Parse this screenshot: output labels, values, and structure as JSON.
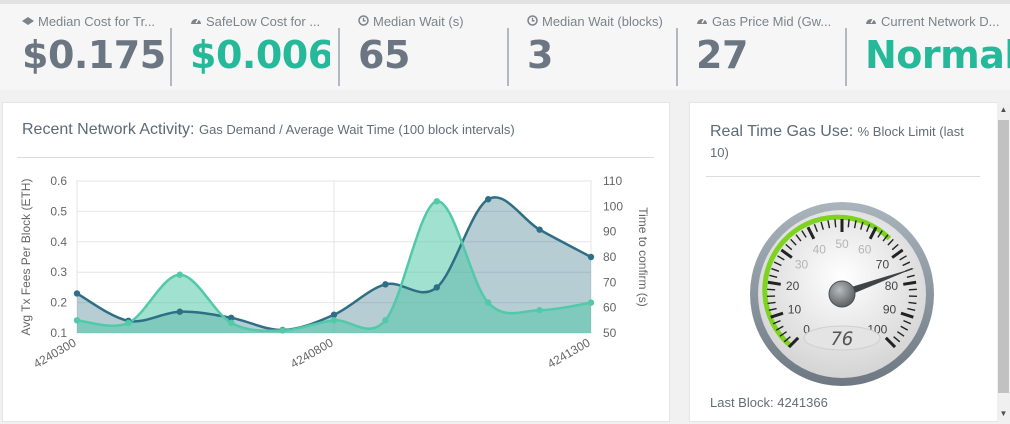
{
  "stats": [
    {
      "label": "Median Cost for Tr...",
      "value": "$0.1752",
      "icon": "ether-icon",
      "accent": "#6b7682"
    },
    {
      "label": "SafeLow Cost for ...",
      "value": "$0.006",
      "icon": "dashboard-icon",
      "accent": "#25b99a"
    },
    {
      "label": "Median Wait (s)",
      "value": "65",
      "icon": "clock-icon",
      "accent": "#6b7682"
    },
    {
      "label": "Median Wait (blocks)",
      "value": "3",
      "icon": "clock-icon",
      "accent": "#6b7682"
    },
    {
      "label": "Gas Price Mid (Gw...",
      "value": "27",
      "icon": "dashboard-icon",
      "accent": "#6b7682"
    },
    {
      "label": "Current Network D...",
      "value": "Normal",
      "icon": "dashboard-icon",
      "accent": "#25b99a"
    }
  ],
  "activity": {
    "title": "Recent Network Activity:",
    "subtitle": "Gas Demand / Average Wait Time (100 block intervals)"
  },
  "gauge_panel": {
    "title": "Real Time Gas Use:",
    "subtitle": "% Block Limit (last 10)",
    "last_block_label": "Last Block:",
    "last_block_value": "4241366"
  },
  "chart_data": {
    "type": "line",
    "x_ticks": [
      "4240300",
      "4240800",
      "4241300"
    ],
    "ylabel": "Avg Tx Fees Per Block (ETH)",
    "ylabel_right": "Time to confirm (s)",
    "ylim": [
      0.1,
      0.6
    ],
    "ylim_right": [
      50,
      110
    ],
    "y_ticks": [
      "0.1",
      "0.2",
      "0.3",
      "0.4",
      "0.5",
      "0.6"
    ],
    "y_ticks_right": [
      "50",
      "60",
      "70",
      "80",
      "90",
      "100",
      "110"
    ],
    "grid": true,
    "x": [
      4240300,
      4240400,
      4240500,
      4240600,
      4240700,
      4240800,
      4240900,
      4241000,
      4241100,
      4241200,
      4241300
    ],
    "series": [
      {
        "axis": "left",
        "color": "#2f6f85",
        "values": [
          0.23,
          0.14,
          0.17,
          0.15,
          0.11,
          0.16,
          0.26,
          0.25,
          0.54,
          0.44,
          0.35
        ]
      },
      {
        "axis": "right",
        "color": "#52c9a9",
        "values": [
          55,
          54,
          73,
          54,
          51,
          55,
          55,
          102,
          62,
          59,
          62
        ]
      }
    ]
  },
  "gauge": {
    "value": 76,
    "display": "76",
    "min": 0,
    "max": 100,
    "labels": [
      "0",
      "10",
      "20",
      "30",
      "40",
      "50",
      "60",
      "70",
      "80",
      "90",
      "100"
    ],
    "arc_color": "#7ed321"
  }
}
